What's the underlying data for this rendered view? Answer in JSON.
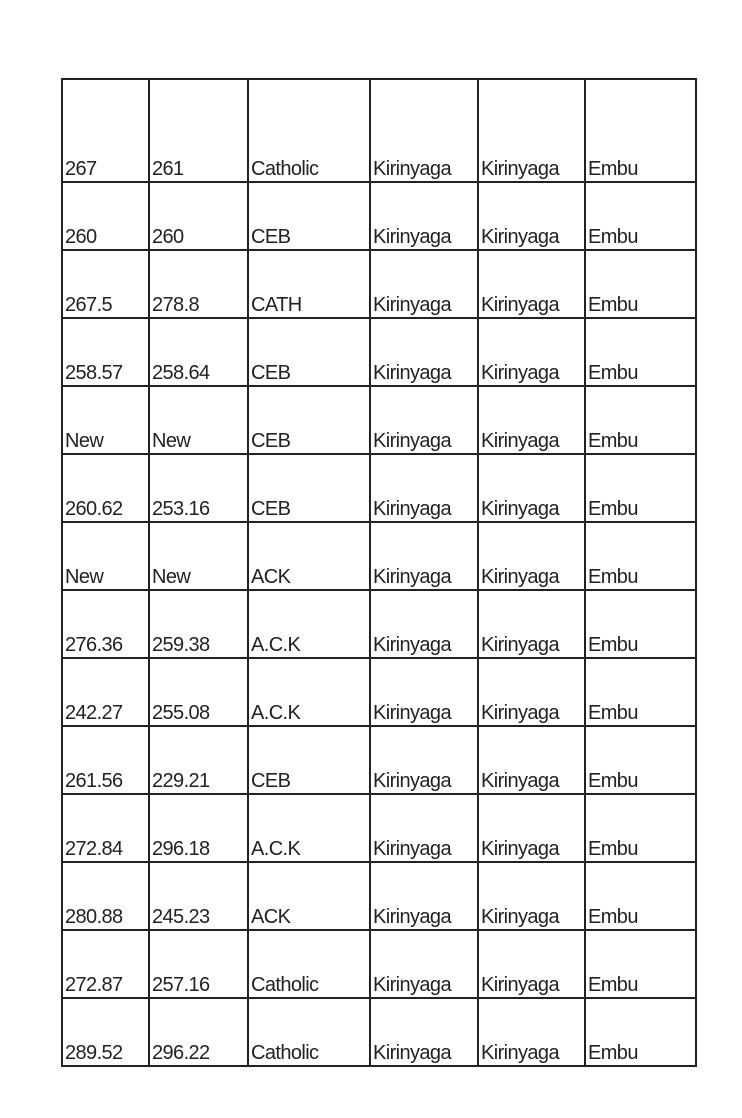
{
  "table": {
    "rows": [
      [
        "267",
        "261",
        "Catholic",
        "Kirinyaga",
        "Kirinyaga",
        "Embu"
      ],
      [
        "260",
        "260",
        "CEB",
        "Kirinyaga",
        "Kirinyaga",
        "Embu"
      ],
      [
        "267.5",
        "278.8",
        "CATH",
        "Kirinyaga",
        "Kirinyaga",
        "Embu"
      ],
      [
        "258.57",
        "258.64",
        "CEB",
        "Kirinyaga",
        "Kirinyaga",
        "Embu"
      ],
      [
        "New",
        "New",
        "CEB",
        "Kirinyaga",
        "Kirinyaga",
        "Embu"
      ],
      [
        "260.62",
        "253.16",
        "CEB",
        "Kirinyaga",
        "Kirinyaga",
        "Embu"
      ],
      [
        "New",
        "New",
        "ACK",
        "Kirinyaga",
        "Kirinyaga",
        "Embu"
      ],
      [
        "276.36",
        "259.38",
        "A.C.K",
        "Kirinyaga",
        "Kirinyaga",
        "Embu"
      ],
      [
        "242.27",
        "255.08",
        "A.C.K",
        "Kirinyaga",
        "Kirinyaga",
        "Embu"
      ],
      [
        "261.56",
        "229.21",
        "CEB",
        "Kirinyaga",
        "Kirinyaga",
        "Embu"
      ],
      [
        "272.84",
        "296.18",
        "A.C.K",
        "Kirinyaga",
        "Kirinyaga",
        "Embu"
      ],
      [
        "280.88",
        "245.23",
        "ACK",
        "Kirinyaga",
        "Kirinyaga",
        "Embu"
      ],
      [
        "272.87",
        "257.16",
        "Catholic",
        "Kirinyaga",
        "Kirinyaga",
        "Embu"
      ],
      [
        "289.52",
        "296.22",
        "Catholic",
        "Kirinyaga",
        "Kirinyaga",
        "Embu"
      ]
    ]
  }
}
